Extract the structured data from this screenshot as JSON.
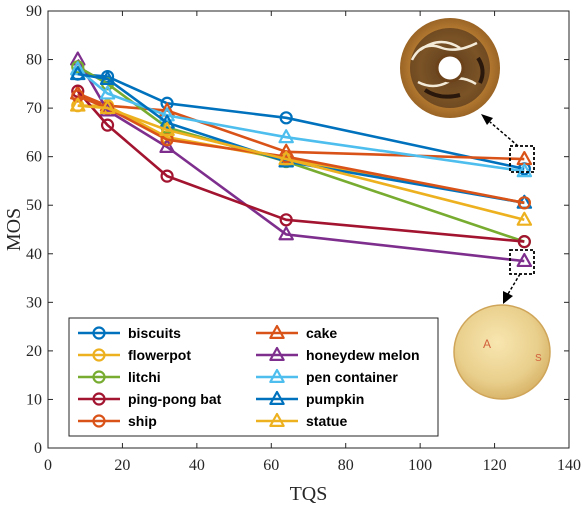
{
  "chart_data": {
    "type": "line",
    "xlabel": "TQS",
    "ylabel": "MOS",
    "xlim": [
      0,
      140
    ],
    "ylim": [
      0,
      90
    ],
    "x_ticks": [
      0,
      20,
      40,
      60,
      80,
      100,
      120,
      140
    ],
    "y_ticks": [
      0,
      10,
      20,
      30,
      40,
      50,
      60,
      70,
      80,
      90
    ],
    "grid": false,
    "legend_position": "bottom-left",
    "x": [
      8,
      16,
      32,
      64,
      128
    ],
    "series": [
      {
        "name": "biscuits",
        "marker": "circle",
        "color": "#0072BD",
        "values": [
          77.0,
          76.5,
          71.0,
          68.0,
          57.5
        ]
      },
      {
        "name": "cake",
        "marker": "triangle",
        "color": "#D95319",
        "values": [
          73.0,
          70.5,
          69.5,
          61.0,
          59.5
        ]
      },
      {
        "name": "flowerpot",
        "marker": "circle",
        "color": "#EDB120",
        "values": [
          70.5,
          70.5,
          64.0,
          59.5,
          50.5
        ]
      },
      {
        "name": "honeydew melon",
        "marker": "triangle",
        "color": "#7E2F8E",
        "values": [
          80.0,
          69.5,
          62.0,
          44.0,
          38.5
        ]
      },
      {
        "name": "litchi",
        "marker": "circle",
        "color": "#77AC30",
        "values": [
          78.5,
          75.0,
          66.0,
          59.0,
          42.5
        ]
      },
      {
        "name": "pen container",
        "marker": "triangle",
        "color": "#4DBEEE",
        "values": [
          78.0,
          73.0,
          68.5,
          64.0,
          57.0
        ]
      },
      {
        "name": "ping-pong bat",
        "marker": "circle",
        "color": "#A2142F",
        "values": [
          73.5,
          66.5,
          56.0,
          47.0,
          42.5
        ]
      },
      {
        "name": "pumpkin",
        "marker": "triangle",
        "color": "#0072BD",
        "values": [
          77.0,
          76.0,
          67.0,
          59.0,
          50.5
        ]
      },
      {
        "name": "ship",
        "marker": "circle",
        "color": "#D95319",
        "values": [
          72.5,
          70.0,
          63.5,
          60.0,
          50.5
        ]
      },
      {
        "name": "statue",
        "marker": "triangle",
        "color": "#EDB120",
        "values": [
          70.5,
          70.0,
          65.5,
          59.5,
          47.0
        ]
      }
    ],
    "annotations": [
      {
        "type": "image-inset",
        "content": "donut",
        "points_to": {
          "x": 128,
          "y": 59
        }
      },
      {
        "type": "image-inset",
        "content": "melon",
        "points_to": {
          "x": 128,
          "y": 38.5
        }
      }
    ]
  }
}
